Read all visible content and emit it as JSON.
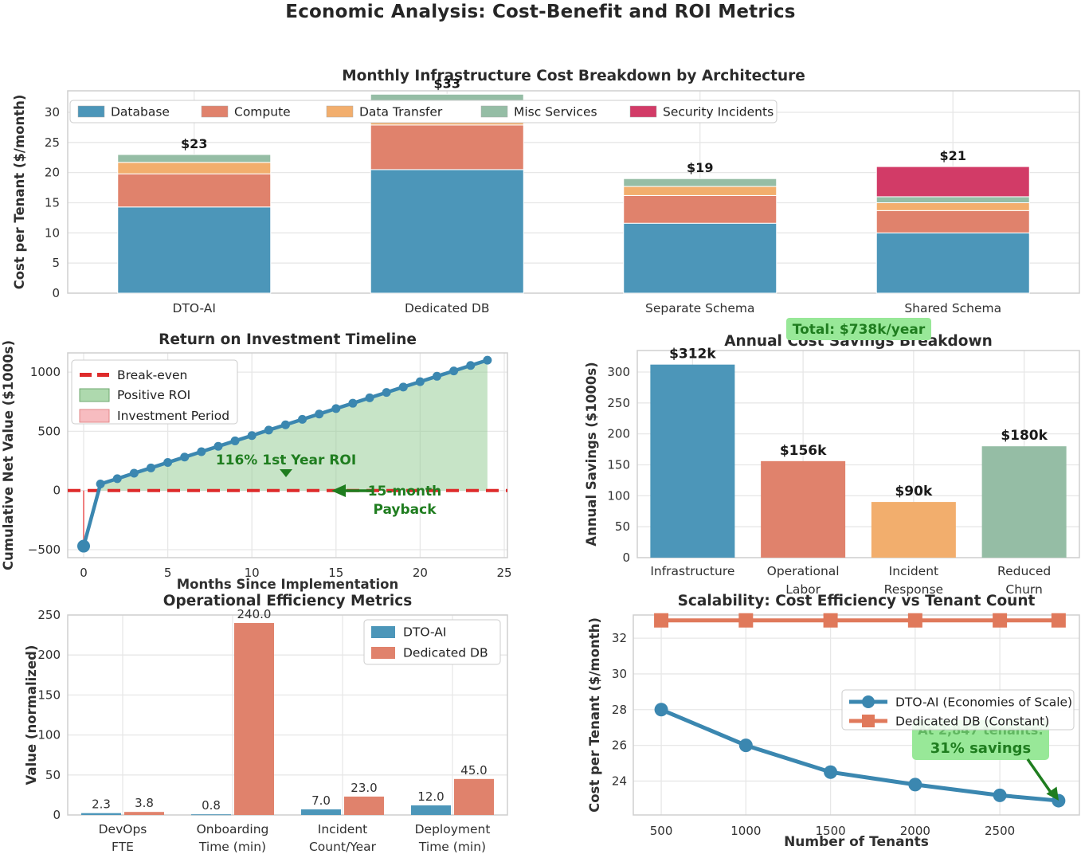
{
  "main_title": "Economic Analysis: Cost-Benefit and ROI Metrics",
  "colors": {
    "blue": "#4C96B9",
    "salmon": "#E0826C",
    "orange": "#F2AE6D",
    "green": "#95BDA5",
    "crimson": "#D23B67",
    "line_blue": "#3B87B0",
    "line_salmon": "#E0795B",
    "breakeven_red": "#DE2B2B",
    "invest_pink": "#F08080",
    "roi_fill_green": "#8FC98F",
    "legend_green": "#AED9AE",
    "legend_pink": "#F7BCC0",
    "annot_green": "#1F7D1F",
    "badge_bg": "#98E898",
    "grid": "#E7E7E7",
    "spine": "#CFCFCF",
    "text": "#303030"
  },
  "chart_data": [
    {
      "id": "cost_breakdown",
      "type": "bar",
      "variant": "stacked",
      "title": "Monthly Infrastructure Cost Breakdown by Architecture",
      "ylabel": "Cost per Tenant ($/month)",
      "categories": [
        "DTO-AI",
        "Dedicated DB",
        "Separate Schema",
        "Shared Schema"
      ],
      "series": [
        {
          "name": "Database",
          "color_key": "blue",
          "values": [
            14.3,
            20.5,
            11.6,
            10.0
          ]
        },
        {
          "name": "Compute",
          "color_key": "salmon",
          "values": [
            5.5,
            7.4,
            4.6,
            3.7
          ]
        },
        {
          "name": "Data Transfer",
          "color_key": "orange",
          "values": [
            1.9,
            2.8,
            1.5,
            1.3
          ]
        },
        {
          "name": "Misc Services",
          "color_key": "green",
          "values": [
            1.3,
            2.3,
            1.3,
            1.0
          ]
        },
        {
          "name": "Security Incidents",
          "color_key": "crimson",
          "values": [
            0,
            0,
            0,
            5.0
          ]
        }
      ],
      "totals_labels": [
        "$23",
        "$33",
        "$19",
        "$21"
      ],
      "yticks": [
        0,
        5,
        10,
        15,
        20,
        25,
        30
      ],
      "ylim": [
        0,
        33.6
      ],
      "legend_position": "top-row"
    },
    {
      "id": "roi_timeline",
      "type": "line",
      "title": "Return on Investment Timeline",
      "xlabel": "Months Since Implementation",
      "ylabel": "Cumulative Net Value ($1000s)",
      "x": [
        0,
        1,
        2,
        3,
        4,
        5,
        6,
        7,
        8,
        9,
        10,
        11,
        12,
        13,
        14,
        15,
        16,
        17,
        18,
        19,
        20,
        21,
        22,
        23,
        24
      ],
      "y": [
        -470,
        55,
        100,
        146,
        191,
        237,
        282,
        328,
        373,
        419,
        464,
        510,
        555,
        601,
        646,
        692,
        737,
        783,
        828,
        874,
        919,
        965,
        1010,
        1056,
        1101
      ],
      "xticks": [
        0,
        5,
        10,
        15,
        20,
        25
      ],
      "yticks": [
        -500,
        0,
        500,
        1000
      ],
      "legend": [
        {
          "label": "Break-even",
          "swatch": "dashed-red"
        },
        {
          "label": "Positive ROI",
          "swatch": "green-fill"
        },
        {
          "label": "Investment Period",
          "swatch": "pink-fill"
        }
      ],
      "annotations": {
        "roi_text": "116% 1st Year ROI",
        "payback_line1": "15-month",
        "payback_line2": "Payback"
      }
    },
    {
      "id": "annual_savings",
      "type": "bar",
      "variant": "simple",
      "title": "Annual Cost Savings Breakdown",
      "ylabel": "Annual Savings ($1000s)",
      "categories": [
        [
          "Infrastructure"
        ],
        [
          "Operational",
          "Labor"
        ],
        [
          "Incident",
          "Response"
        ],
        [
          "Reduced",
          "Churn"
        ]
      ],
      "values": [
        312,
        156,
        90,
        180
      ],
      "bar_labels": [
        "$312k",
        "$156k",
        "$90k",
        "$180k"
      ],
      "color_keys": [
        "blue",
        "salmon",
        "orange",
        "green"
      ],
      "yticks": [
        0,
        50,
        100,
        150,
        200,
        250,
        300
      ],
      "ylim": [
        0,
        335
      ],
      "total_badge": "Total: $738k/year"
    },
    {
      "id": "efficiency",
      "type": "bar",
      "variant": "grouped",
      "title": "Operational Efficiency Metrics",
      "ylabel": "Value (normalized)",
      "categories": [
        [
          "DevOps",
          "FTE"
        ],
        [
          "Onboarding",
          "Time (min)"
        ],
        [
          "Incident",
          "Count/Year"
        ],
        [
          "Deployment",
          "Time (min)"
        ]
      ],
      "series": [
        {
          "name": "DTO-AI",
          "color_key": "blue",
          "values": [
            2.3,
            0.8,
            7.0,
            12.0
          ],
          "labels": [
            "2.3",
            "0.8",
            "7.0",
            "12.0"
          ]
        },
        {
          "name": "Dedicated DB",
          "color_key": "salmon",
          "values": [
            3.8,
            240.0,
            23.0,
            45.0
          ],
          "labels": [
            "3.8",
            "240.0",
            "23.0",
            "45.0"
          ]
        }
      ],
      "yticks": [
        0,
        50,
        100,
        150,
        200,
        250
      ],
      "ylim": [
        0,
        250
      ]
    },
    {
      "id": "scalability",
      "type": "line",
      "title": "Scalability: Cost Efficiency vs Tenant Count",
      "xlabel": "Number of Tenants",
      "ylabel": "Cost per Tenant ($/month)",
      "series": [
        {
          "name": "DTO-AI (Economies of Scale)",
          "color_key": "line_blue",
          "marker": "circle",
          "x": [
            500,
            1000,
            1500,
            2000,
            2500,
            2847
          ],
          "y": [
            28.0,
            26.0,
            24.5,
            23.8,
            23.2,
            22.9
          ]
        },
        {
          "name": "Dedicated DB (Constant)",
          "color_key": "line_salmon",
          "marker": "square",
          "x": [
            500,
            1000,
            1500,
            2000,
            2500,
            2847
          ],
          "y": [
            33,
            33,
            33,
            33,
            33,
            33
          ]
        }
      ],
      "xticks": [
        500,
        1000,
        1500,
        2000,
        2500
      ],
      "yticks": [
        24,
        26,
        28,
        30,
        32
      ],
      "xlim": [
        335,
        2970
      ],
      "ylim": [
        22.1,
        33.3
      ],
      "annotation": {
        "line1": "At 2,847 tenants:",
        "line2": "31% savings"
      }
    }
  ]
}
